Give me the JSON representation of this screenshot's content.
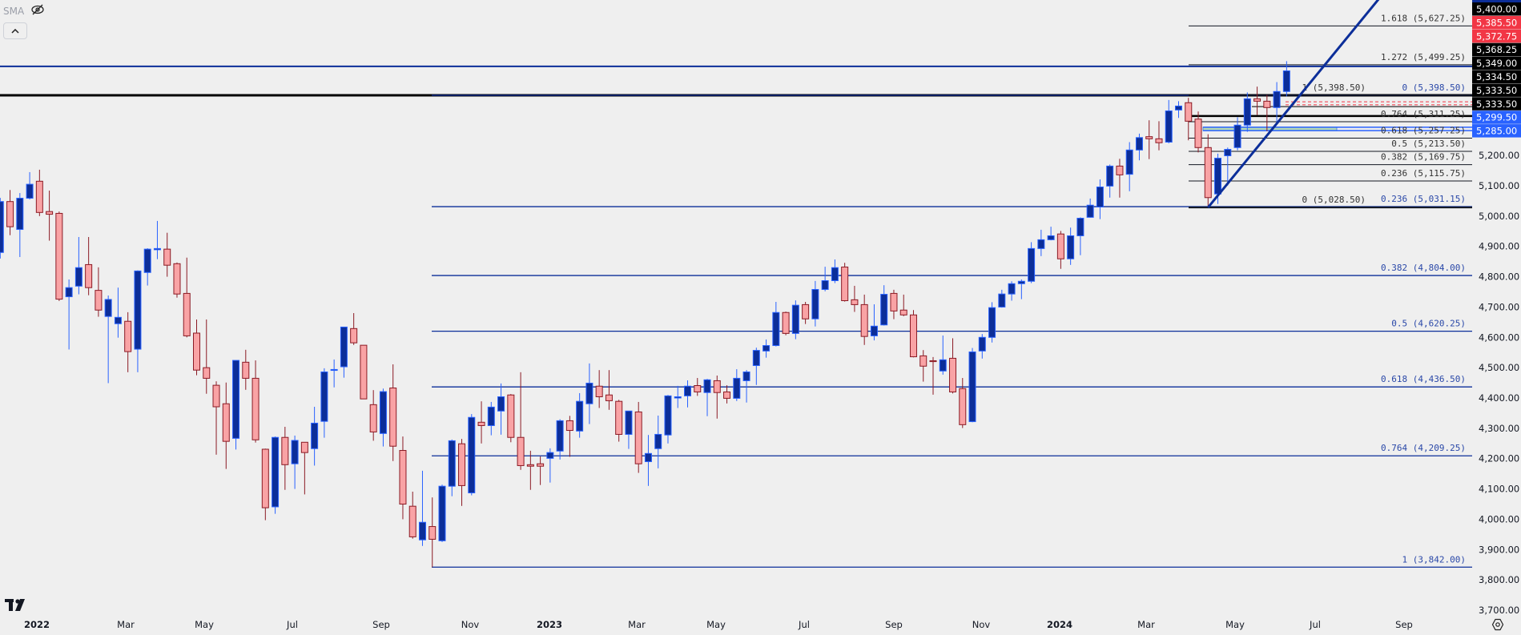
{
  "legend": {
    "indicator": "SMA",
    "visibility_icon": "eye-crossed-icon",
    "collapse_icon": "chevron-up-icon"
  },
  "logo": {
    "text": "TV"
  },
  "settings_icon": "gear-icon",
  "colors": {
    "background": "#efefef",
    "bull_body": "#0c2e99",
    "bull_border": "#2962ff",
    "bear_body": "#f9a3a5",
    "bear_border": "#8b1a24",
    "fib_blue": "#0c2e99",
    "fib_black": "#131722",
    "alert_red": "#f23645",
    "label_blue": "#2962ff"
  },
  "chart_data": {
    "type": "candlestick",
    "interval": "weekly",
    "ylim": [
      3666,
      5713
    ],
    "y_ticks": [
      "5,200.00",
      "5,100.00",
      "5,000.00",
      "4,900.00",
      "4,800.00",
      "4,700.00",
      "4,600.00",
      "4,500.00",
      "4,400.00",
      "4,300.00",
      "4,200.00",
      "4,100.00",
      "4,000.00",
      "3,900.00",
      "3,800.00",
      "3,700.00"
    ],
    "y_tick_values": [
      5200,
      5100,
      5000,
      4900,
      4800,
      4700,
      4600,
      4500,
      4400,
      4300,
      4200,
      4100,
      4000,
      3900,
      3800,
      3700
    ],
    "x_ticks": [
      "2022",
      "Mar",
      "May",
      "Jul",
      "Sep",
      "Nov",
      "2023",
      "Mar",
      "May",
      "Jul",
      "Sep",
      "Nov",
      "2024",
      "Mar",
      "May",
      "Jul",
      "Sep"
    ],
    "ohlc": [
      [
        4880,
        5060,
        4860,
        5048
      ],
      [
        5048,
        5086,
        4937,
        4965
      ],
      [
        4956,
        5076,
        4865,
        5059
      ],
      [
        5059,
        5145,
        5055,
        5105
      ],
      [
        5115,
        5153,
        5000,
        5012
      ],
      [
        5015,
        5084,
        4919,
        5006
      ],
      [
        5009,
        5015,
        4720,
        4726
      ],
      [
        4734,
        4791,
        4560,
        4764
      ],
      [
        4769,
        4931,
        4742,
        4830
      ],
      [
        4840,
        4931,
        4739,
        4764
      ],
      [
        4755,
        4831,
        4668,
        4690
      ],
      [
        4669,
        4738,
        4449,
        4725
      ],
      [
        4645,
        4764,
        4599,
        4666
      ],
      [
        4653,
        4683,
        4485,
        4553
      ],
      [
        4561,
        4821,
        4485,
        4819
      ],
      [
        4814,
        4894,
        4771,
        4891
      ],
      [
        4889,
        4984,
        4858,
        4893
      ],
      [
        4891,
        4945,
        4800,
        4838
      ],
      [
        4843,
        4847,
        4731,
        4743
      ],
      [
        4745,
        4863,
        4600,
        4605
      ],
      [
        4614,
        4659,
        4475,
        4492
      ],
      [
        4500,
        4659,
        4414,
        4465
      ],
      [
        4442,
        4455,
        4213,
        4371
      ],
      [
        4381,
        4451,
        4166,
        4257
      ],
      [
        4267,
        4524,
        4230,
        4524
      ],
      [
        4518,
        4559,
        4427,
        4465
      ],
      [
        4465,
        4524,
        4253,
        4262
      ],
      [
        4231,
        4233,
        3997,
        4038
      ],
      [
        4041,
        4273,
        4018,
        4270
      ],
      [
        4270,
        4305,
        4097,
        4180
      ],
      [
        4183,
        4276,
        4100,
        4260
      ],
      [
        4254,
        4254,
        4082,
        4220
      ],
      [
        4233,
        4371,
        4177,
        4317
      ],
      [
        4323,
        4498,
        4269,
        4486
      ],
      [
        4491,
        4527,
        4435,
        4494
      ],
      [
        4503,
        4634,
        4467,
        4634
      ],
      [
        4629,
        4680,
        4575,
        4582
      ],
      [
        4574,
        4574,
        4397,
        4397
      ],
      [
        4378,
        4426,
        4259,
        4288
      ],
      [
        4283,
        4431,
        4240,
        4421
      ],
      [
        4433,
        4511,
        4192,
        4241
      ],
      [
        4227,
        4273,
        4000,
        4050
      ],
      [
        4043,
        4091,
        3936,
        3942
      ],
      [
        3932,
        4160,
        3912,
        3990
      ],
      [
        3976,
        4072,
        3842,
        3934
      ],
      [
        3929,
        4114,
        3925,
        4109
      ],
      [
        4109,
        4263,
        4076,
        4259
      ],
      [
        4249,
        4265,
        4044,
        4111
      ],
      [
        4087,
        4347,
        4079,
        4336
      ],
      [
        4320,
        4389,
        4250,
        4309
      ],
      [
        4309,
        4387,
        4277,
        4370
      ],
      [
        4357,
        4448,
        4279,
        4404
      ],
      [
        4410,
        4413,
        4254,
        4270
      ],
      [
        4270,
        4485,
        4163,
        4177
      ],
      [
        4180,
        4226,
        4097,
        4175
      ],
      [
        4183,
        4207,
        4113,
        4175
      ],
      [
        4201,
        4234,
        4121,
        4220
      ],
      [
        4225,
        4330,
        4197,
        4325
      ],
      [
        4325,
        4341,
        4206,
        4293
      ],
      [
        4291,
        4416,
        4269,
        4389
      ],
      [
        4381,
        4514,
        4314,
        4449
      ],
      [
        4439,
        4492,
        4367,
        4404
      ],
      [
        4410,
        4492,
        4361,
        4391
      ],
      [
        4389,
        4394,
        4256,
        4280
      ],
      [
        4280,
        4357,
        4232,
        4357
      ],
      [
        4354,
        4387,
        4153,
        4183
      ],
      [
        4190,
        4278,
        4110,
        4217
      ],
      [
        4233,
        4342,
        4168,
        4280
      ],
      [
        4278,
        4410,
        4250,
        4407
      ],
      [
        4400,
        4440,
        4367,
        4404
      ],
      [
        4407,
        4458,
        4369,
        4439
      ],
      [
        4441,
        4466,
        4407,
        4420
      ],
      [
        4418,
        4463,
        4340,
        4460
      ],
      [
        4457,
        4474,
        4332,
        4418
      ],
      [
        4420,
        4442,
        4382,
        4399
      ],
      [
        4399,
        4495,
        4390,
        4465
      ],
      [
        4457,
        4492,
        4385,
        4486
      ],
      [
        4507,
        4566,
        4443,
        4557
      ],
      [
        4555,
        4593,
        4533,
        4573
      ],
      [
        4573,
        4717,
        4570,
        4682
      ],
      [
        4682,
        4685,
        4607,
        4613
      ],
      [
        4613,
        4722,
        4594,
        4706
      ],
      [
        4708,
        4717,
        4644,
        4661
      ],
      [
        4661,
        4786,
        4636,
        4758
      ],
      [
        4758,
        4833,
        4752,
        4787
      ],
      [
        4787,
        4857,
        4779,
        4830
      ],
      [
        4832,
        4846,
        4718,
        4721
      ],
      [
        4724,
        4770,
        4684,
        4708
      ],
      [
        4708,
        4741,
        4575,
        4603
      ],
      [
        4605,
        4709,
        4590,
        4637
      ],
      [
        4641,
        4772,
        4639,
        4742
      ],
      [
        4745,
        4757,
        4660,
        4687
      ],
      [
        4690,
        4741,
        4670,
        4674
      ],
      [
        4674,
        4690,
        4534,
        4536
      ],
      [
        4539,
        4558,
        4454,
        4505
      ],
      [
        4523,
        4535,
        4411,
        4520
      ],
      [
        4489,
        4606,
        4477,
        4526
      ],
      [
        4531,
        4597,
        4415,
        4420
      ],
      [
        4431,
        4466,
        4301,
        4312
      ],
      [
        4322,
        4565,
        4320,
        4552
      ],
      [
        4555,
        4611,
        4530,
        4600
      ],
      [
        4600,
        4716,
        4583,
        4698
      ],
      [
        4700,
        4757,
        4698,
        4743
      ],
      [
        4743,
        4785,
        4721,
        4777
      ],
      [
        4777,
        4791,
        4726,
        4785
      ],
      [
        4785,
        4914,
        4779,
        4893
      ],
      [
        4893,
        4955,
        4868,
        4922
      ],
      [
        4922,
        4965,
        4920,
        4935
      ],
      [
        4941,
        4951,
        4826,
        4859
      ],
      [
        4859,
        4962,
        4839,
        4935
      ],
      [
        4935,
        4996,
        4871,
        4993
      ],
      [
        4996,
        5058,
        4995,
        5036
      ],
      [
        5030,
        5121,
        4990,
        5096
      ],
      [
        5099,
        5170,
        5061,
        5165
      ],
      [
        5165,
        5189,
        5061,
        5136
      ],
      [
        5138,
        5244,
        5082,
        5218
      ],
      [
        5218,
        5272,
        5184,
        5259
      ],
      [
        5262,
        5316,
        5188,
        5255
      ],
      [
        5255,
        5313,
        5217,
        5242
      ],
      [
        5244,
        5383,
        5240,
        5347
      ],
      [
        5350,
        5379,
        5324,
        5363
      ],
      [
        5374,
        5390,
        5250,
        5313
      ],
      [
        5320,
        5345,
        5210,
        5226
      ],
      [
        5226,
        5270,
        5030,
        5061
      ],
      [
        5073,
        5206,
        5040,
        5191
      ],
      [
        5199,
        5226,
        5101,
        5220
      ],
      [
        5226,
        5326,
        5217,
        5300
      ],
      [
        5300,
        5408,
        5278,
        5387
      ],
      [
        5387,
        5427,
        5333,
        5379
      ],
      [
        5379,
        5400,
        5280,
        5358
      ],
      [
        5358,
        5442,
        5308,
        5411
      ],
      [
        5411,
        5511,
        5395,
        5479
      ]
    ],
    "fib_retracement_blue": [
      {
        "level": "0",
        "price": 5398.5,
        "label": "0 (5,398.50)"
      },
      {
        "level": "0.236",
        "price": 5031.15,
        "label": "0.236 (5,031.15)"
      },
      {
        "level": "0.382",
        "price": 4804.0,
        "label": "0.382 (4,804.00)"
      },
      {
        "level": "0.5",
        "price": 4620.25,
        "label": "0.5 (4,620.25)"
      },
      {
        "level": "0.618",
        "price": 4436.5,
        "label": "0.618 (4,436.50)"
      },
      {
        "level": "0.764",
        "price": 4209.25,
        "label": "0.764 (4,209.25)"
      },
      {
        "level": "1",
        "price": 3842.0,
        "label": "1 (3,842.00)"
      }
    ],
    "fib_retracement_black": [
      {
        "level": "0",
        "price": 5028.5,
        "label": "0 (5,028.50)"
      },
      {
        "level": "0.236",
        "price": 5115.75,
        "label": "0.236 (5,115.75)"
      },
      {
        "level": "0.382",
        "price": 5169.75,
        "label": "0.382 (5,169.75)"
      },
      {
        "level": "0.5",
        "price": 5213.5,
        "label": "0.5 (5,213.50)"
      },
      {
        "level": "0.618",
        "price": 5257.25,
        "label": "0.618 (5,257.25)"
      },
      {
        "level": "0.764",
        "price": 5311.25,
        "label": "0.764 (5,311.25)"
      },
      {
        "level": "1",
        "price": 5398.5,
        "label": "1 (5,398.50)"
      },
      {
        "level": "1.272",
        "price": 5499.25,
        "label": "1.272 (5,499.25)"
      },
      {
        "level": "1.618",
        "price": 5627.25,
        "label": "1.618 (5,627.25)"
      }
    ],
    "horizontal_lines": [
      {
        "price": 5494,
        "color": "#0c2e99"
      },
      {
        "price": 5398.5,
        "color": "#000000"
      }
    ],
    "price_labels": [
      {
        "text": "5,400.00",
        "bg": "#000000"
      },
      {
        "text": "5,385.50",
        "bg": "#f23645"
      },
      {
        "text": "5,372.75",
        "bg": "#f23645"
      },
      {
        "text": "5,368.25",
        "bg": "#000000"
      },
      {
        "text": "5,349.00",
        "bg": "#000000"
      },
      {
        "text": "5,334.50",
        "bg": "#000000"
      },
      {
        "text": "5,333.50",
        "bg": "#000000"
      },
      {
        "text": "5,333.50",
        "bg": "#000000"
      },
      {
        "text": "5,299.50",
        "bg": "#2962ff"
      },
      {
        "text": "5,285.00",
        "bg": "#2962ff"
      }
    ]
  }
}
